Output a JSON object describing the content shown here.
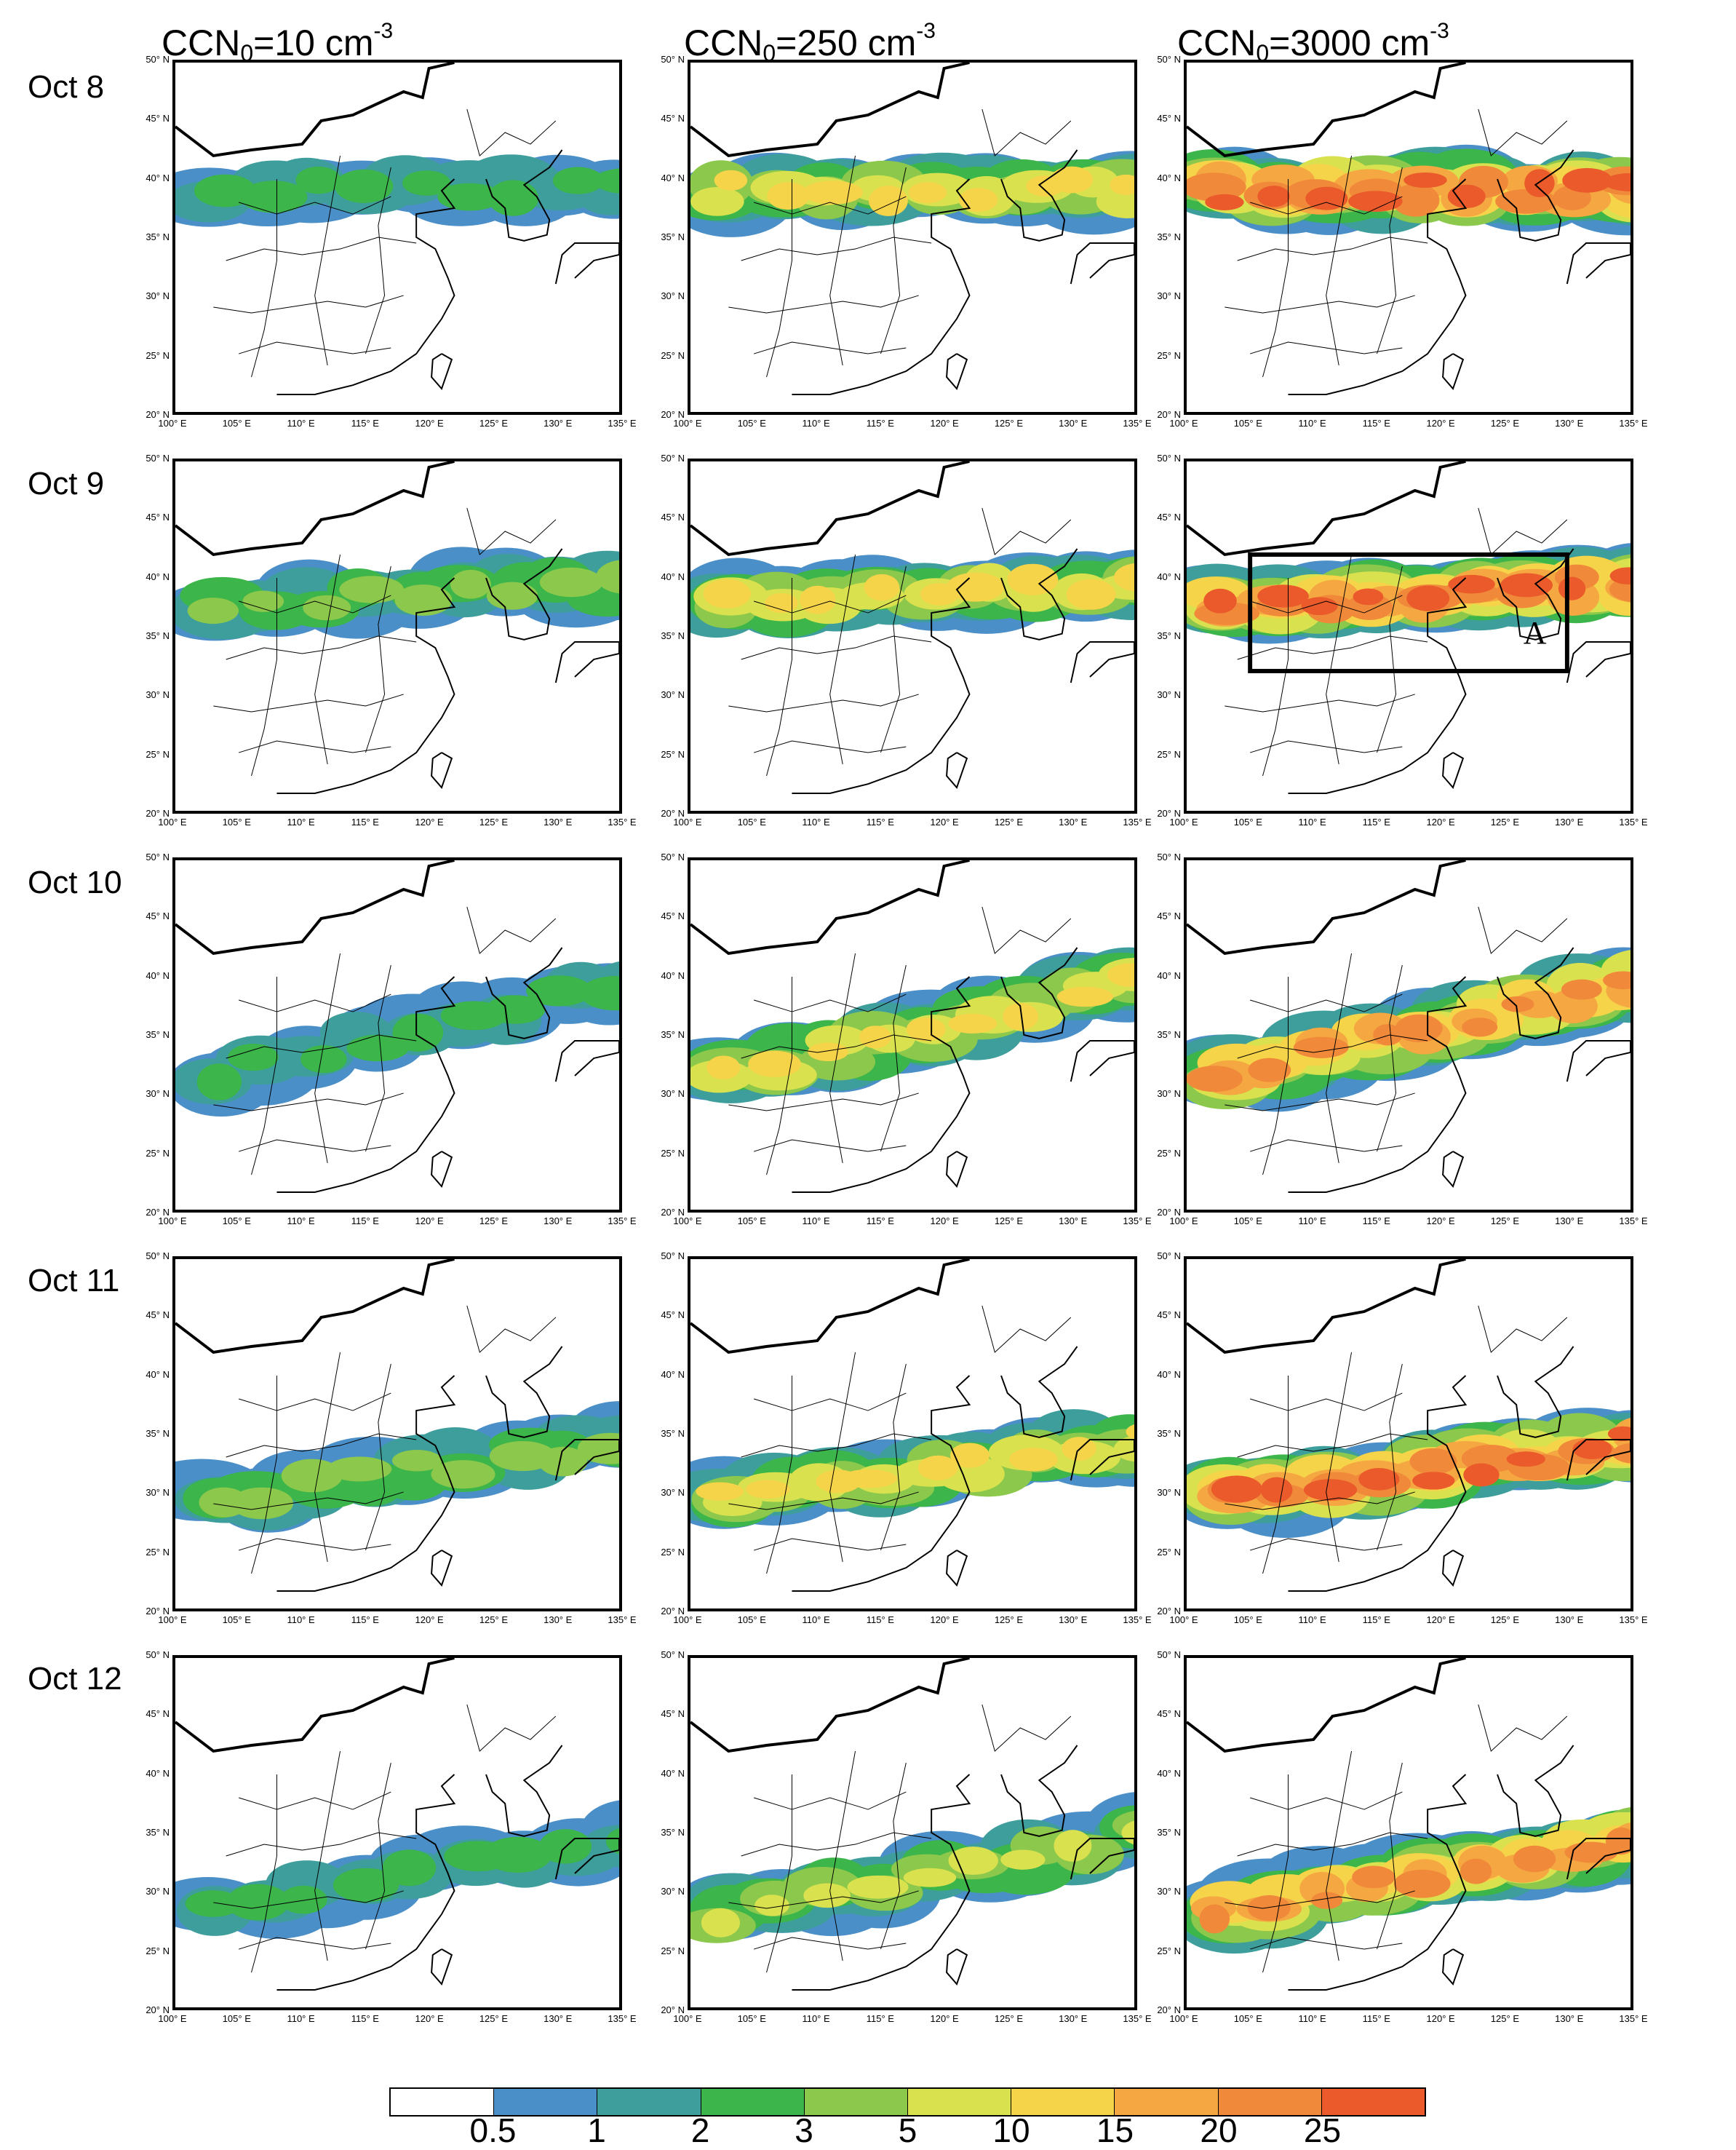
{
  "columns": [
    {
      "ccn_text": "CCN",
      "sub": "0",
      "value_text": "=10 cm",
      "sup": "-3"
    },
    {
      "ccn_text": "CCN",
      "sub": "0",
      "value_text": "=250 cm",
      "sup": "-3"
    },
    {
      "ccn_text": "CCN",
      "sub": "0",
      "value_text": "=3000 cm",
      "sup": "-3"
    }
  ],
  "rows": [
    {
      "label": "Oct  8"
    },
    {
      "label": "Oct 9"
    },
    {
      "label": "Oct 10"
    },
    {
      "label": "Oct 11"
    },
    {
      "label": "Oct 12"
    }
  ],
  "axes": {
    "lat_ticks": [
      "50° N",
      "45° N",
      "40° N",
      "35° N",
      "30° N",
      "25° N",
      "20° N"
    ],
    "lon_ticks": [
      "100° E",
      "105° E",
      "110° E",
      "115° E",
      "120° E",
      "125° E",
      "130° E",
      "135° E"
    ],
    "lat_range": [
      20,
      50
    ],
    "lon_range": [
      100,
      135
    ]
  },
  "region_box": {
    "row": 1,
    "col": 2,
    "label": "A",
    "lon_range": [
      105,
      130
    ],
    "lat_range": [
      32,
      42
    ]
  },
  "colorbar": {
    "colors": [
      "#ffffff",
      "#4b8fc8",
      "#3d9e9c",
      "#3cb54a",
      "#8cc84b",
      "#d9e24e",
      "#f6d44a",
      "#f5a742",
      "#f08a3a",
      "#ea5a2a"
    ],
    "labels": [
      "0.5",
      "1",
      "2",
      "3",
      "5",
      "10",
      "15",
      "20",
      "25"
    ]
  },
  "field_intensity": [
    [
      0.35,
      0.65,
      1.0
    ],
    [
      0.45,
      0.72,
      1.0
    ],
    [
      0.38,
      0.62,
      0.92
    ],
    [
      0.42,
      0.7,
      1.0
    ],
    [
      0.35,
      0.6,
      0.9
    ]
  ]
}
